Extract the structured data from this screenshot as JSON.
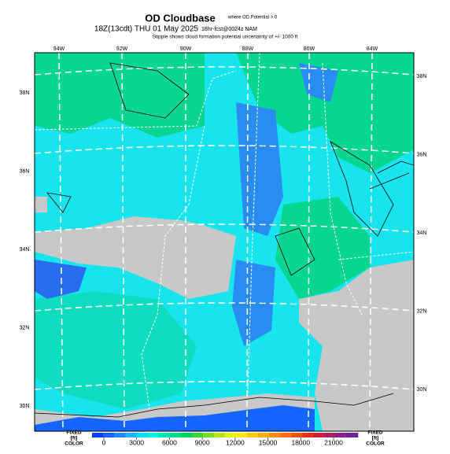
{
  "header": {
    "title": "OD Cloudbase",
    "title_note": "where OD Potential > 0",
    "valid": "18Z(13cdt) THU 01 May 2025",
    "forecast": "18hr-fcst@0024z NAM",
    "subtitle": "Stipple shows cloud formation potential uncertainty of +/- 1000 ft"
  },
  "map": {
    "lon_labels": [
      "94W",
      "92W",
      "90W",
      "88W",
      "86W",
      "84W"
    ],
    "lat_labels_left": [
      "38N",
      "36N",
      "34N",
      "32N",
      "30N"
    ],
    "lat_labels_right": [
      "38N",
      "36N",
      "34N",
      "32N",
      "30N"
    ]
  },
  "colorbar": {
    "left_label": [
      "FIXED",
      "[ft]",
      "COLOR"
    ],
    "right_label": [
      "FIXED",
      "[ft]",
      "COLOR"
    ],
    "ticks": [
      0,
      3000,
      6000,
      9000,
      12000,
      15000,
      18000,
      21000
    ],
    "colors": [
      "#0a3cff",
      "#1464ff",
      "#1e8cff",
      "#1eb4ff",
      "#00dcff",
      "#00f0e6",
      "#00e6b4",
      "#00dc8c",
      "#00d25a",
      "#3cd23c",
      "#78dc28",
      "#b4e61e",
      "#e6f014",
      "#ffe614",
      "#ffc814",
      "#ffaa14",
      "#ff8c14",
      "#ff6e14",
      "#f05014",
      "#dc3214",
      "#c81e3c",
      "#aa1e64",
      "#8c1e8c",
      "#6e1e96"
    ]
  }
}
